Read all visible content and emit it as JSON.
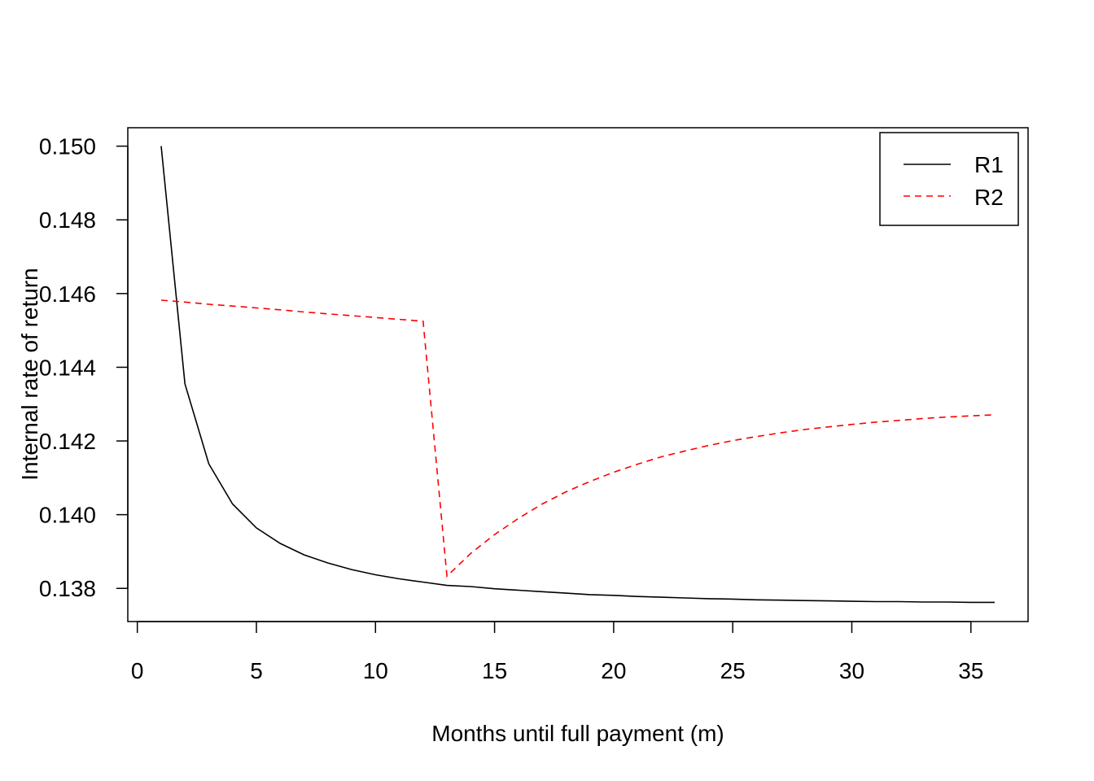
{
  "colors": {
    "R1": "#000000",
    "R2": "#ff0000"
  },
  "chart_data": {
    "type": "line",
    "title": "",
    "xlabel": "Months until full payment (m)",
    "ylabel": "Internal rate of return",
    "xlim": [
      -0.4,
      37.4
    ],
    "ylim": [
      0.1371,
      0.1505
    ],
    "x_ticks": [
      0,
      5,
      10,
      15,
      20,
      25,
      30,
      35
    ],
    "y_ticks": [
      0.138,
      0.14,
      0.142,
      0.144,
      0.146,
      0.148,
      0.15
    ],
    "x_tick_labels": [
      "0",
      "5",
      "10",
      "15",
      "20",
      "25",
      "30",
      "35"
    ],
    "y_tick_labels": [
      "0.138",
      "0.140",
      "0.142",
      "0.144",
      "0.146",
      "0.148",
      "0.150"
    ],
    "grid": false,
    "legend_position": "top-right",
    "x": [
      1,
      2,
      3,
      4,
      5,
      6,
      7,
      8,
      9,
      10,
      11,
      12,
      13,
      14,
      15,
      16,
      17,
      18,
      19,
      20,
      21,
      22,
      23,
      24,
      25,
      26,
      27,
      28,
      29,
      30,
      31,
      32,
      33,
      34,
      35,
      36
    ],
    "series": [
      {
        "name": "R1",
        "style": "solid",
        "values": [
          0.15,
          0.14355,
          0.14138,
          0.14029,
          0.13964,
          0.13922,
          0.13891,
          0.13869,
          0.13851,
          0.13837,
          0.13826,
          0.13817,
          0.13808,
          0.13805,
          0.13799,
          0.13795,
          0.13791,
          0.13787,
          0.13783,
          0.13781,
          0.13778,
          0.13776,
          0.13774,
          0.13772,
          0.13771,
          0.13769,
          0.13768,
          0.13767,
          0.13766,
          0.13765,
          0.13764,
          0.13764,
          0.13763,
          0.13763,
          0.13762,
          0.13762
        ]
      },
      {
        "name": "R2",
        "style": "dashed",
        "values": [
          0.14582,
          0.14577,
          0.14571,
          0.14566,
          0.14561,
          0.14556,
          0.1455,
          0.14545,
          0.1454,
          0.14535,
          0.1453,
          0.14525,
          0.13833,
          0.13895,
          0.13946,
          0.1399,
          0.14029,
          0.14062,
          0.1409,
          0.14115,
          0.14137,
          0.14157,
          0.14173,
          0.14188,
          0.14201,
          0.14212,
          0.14222,
          0.14231,
          0.14238,
          0.14245,
          0.14251,
          0.14256,
          0.14261,
          0.14265,
          0.14268,
          0.14271
        ]
      }
    ]
  }
}
